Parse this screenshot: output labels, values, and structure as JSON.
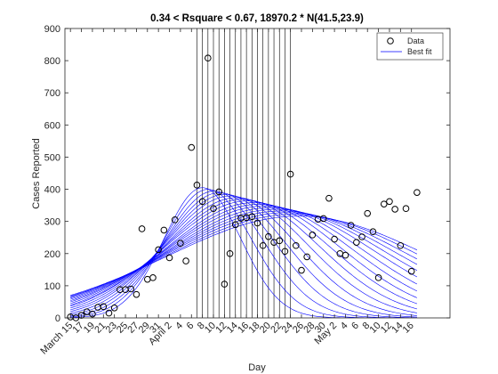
{
  "chart_data": {
    "type": "scatter",
    "title": "0.34 < Rsquare < 0.67,  18970.2 * N(41.5,23.9)",
    "xlabel": "Day",
    "ylabel": "Cases Reported",
    "xlim": [
      -1,
      69
    ],
    "ylim": [
      0,
      900
    ],
    "yticks": [
      0,
      100,
      200,
      300,
      400,
      500,
      600,
      700,
      800,
      900
    ],
    "xticks": [
      {
        "value": 0,
        "label": "March 15"
      },
      {
        "value": 2,
        "label": "17"
      },
      {
        "value": 4,
        "label": "19"
      },
      {
        "value": 6,
        "label": "21"
      },
      {
        "value": 8,
        "label": "23"
      },
      {
        "value": 10,
        "label": "25"
      },
      {
        "value": 12,
        "label": "27"
      },
      {
        "value": 14,
        "label": "29"
      },
      {
        "value": 16,
        "label": "31"
      },
      {
        "value": 18,
        "label": "April 2"
      },
      {
        "value": 20,
        "label": "4"
      },
      {
        "value": 22,
        "label": "6"
      },
      {
        "value": 24,
        "label": "8"
      },
      {
        "value": 26,
        "label": "10"
      },
      {
        "value": 28,
        "label": "12"
      },
      {
        "value": 30,
        "label": "14"
      },
      {
        "value": 32,
        "label": "16"
      },
      {
        "value": 34,
        "label": "18"
      },
      {
        "value": 36,
        "label": "20"
      },
      {
        "value": 38,
        "label": "22"
      },
      {
        "value": 40,
        "label": "24"
      },
      {
        "value": 42,
        "label": "26"
      },
      {
        "value": 44,
        "label": "28"
      },
      {
        "value": 46,
        "label": "30"
      },
      {
        "value": 48,
        "label": "May 2"
      },
      {
        "value": 50,
        "label": "4"
      },
      {
        "value": 52,
        "label": "6"
      },
      {
        "value": 54,
        "label": "8"
      },
      {
        "value": 56,
        "label": "10"
      },
      {
        "value": 58,
        "label": "12"
      },
      {
        "value": 60,
        "label": "14"
      },
      {
        "value": 62,
        "label": "16"
      }
    ],
    "legend": "top-right",
    "vlines": [
      23,
      24,
      25,
      26,
      27,
      28,
      29,
      30,
      31,
      32,
      33,
      34,
      35,
      36,
      37,
      38,
      39,
      40
    ],
    "vline_color": "#000000",
    "series": [
      {
        "name": "Data",
        "color": "#000000",
        "x": [
          0,
          1,
          2,
          3,
          4,
          5,
          6,
          7,
          8,
          9,
          10,
          11,
          12,
          13,
          14,
          15,
          16,
          17,
          18,
          19,
          20,
          21,
          22,
          23,
          24,
          25,
          26,
          27,
          28,
          29,
          30,
          31,
          32,
          33,
          34,
          35,
          36,
          37,
          38,
          39,
          40,
          41,
          42,
          43,
          44,
          45,
          46,
          47,
          48,
          49,
          50,
          51,
          52,
          53,
          54,
          55,
          56,
          57,
          58,
          59,
          60,
          61,
          62,
          63
        ],
        "values": [
          3,
          0,
          8,
          19,
          12,
          33,
          35,
          15,
          31,
          88,
          88,
          90,
          73,
          277,
          120,
          125,
          212,
          273,
          187,
          305,
          232,
          177,
          530,
          413,
          362,
          808,
          340,
          392,
          105,
          200,
          290,
          310,
          312,
          315,
          295,
          225,
          253,
          235,
          240,
          207,
          447,
          225,
          148,
          190,
          258,
          307,
          309,
          372,
          245,
          200,
          195,
          288,
          235,
          252,
          325,
          268,
          125,
          354,
          362,
          338,
          225,
          340,
          145,
          390
        ]
      },
      {
        "name": "Best fit",
        "color": "#0000ff",
        "x_range": [
          0,
          63
        ],
        "curves": [
          {
            "amplitude": 7106,
            "mean": 24,
            "sd": 7
          },
          {
            "amplitude": 8017,
            "mean": 25,
            "sd": 8
          },
          {
            "amplitude": 8902,
            "mean": 26.1,
            "sd": 9
          },
          {
            "amplitude": 9763,
            "mean": 27.1,
            "sd": 10
          },
          {
            "amplitude": 10596,
            "mean": 28.1,
            "sd": 11
          },
          {
            "amplitude": 11403,
            "mean": 29.1,
            "sd": 12
          },
          {
            "amplitude": 12184,
            "mean": 30.2,
            "sd": 13
          },
          {
            "amplitude": 12942,
            "mean": 31.2,
            "sd": 14
          },
          {
            "amplitude": 13671,
            "mean": 32.2,
            "sd": 15
          },
          {
            "amplitude": 14284,
            "mean": 33.3,
            "sd": 15.9
          },
          {
            "amplitude": 14962,
            "mean": 34.3,
            "sd": 16.9
          },
          {
            "amplitude": 15619,
            "mean": 35.3,
            "sd": 17.9
          },
          {
            "amplitude": 16245,
            "mean": 36.4,
            "sd": 18.9
          },
          {
            "amplitude": 16845,
            "mean": 37.4,
            "sd": 19.9
          },
          {
            "amplitude": 17419,
            "mean": 38.4,
            "sd": 20.9
          },
          {
            "amplitude": 17972,
            "mean": 39.4,
            "sd": 21.9
          },
          {
            "amplitude": 18495,
            "mean": 40.5,
            "sd": 22.9
          },
          {
            "amplitude": 18970.2,
            "mean": 41.5,
            "sd": 23.9
          }
        ]
      }
    ]
  }
}
